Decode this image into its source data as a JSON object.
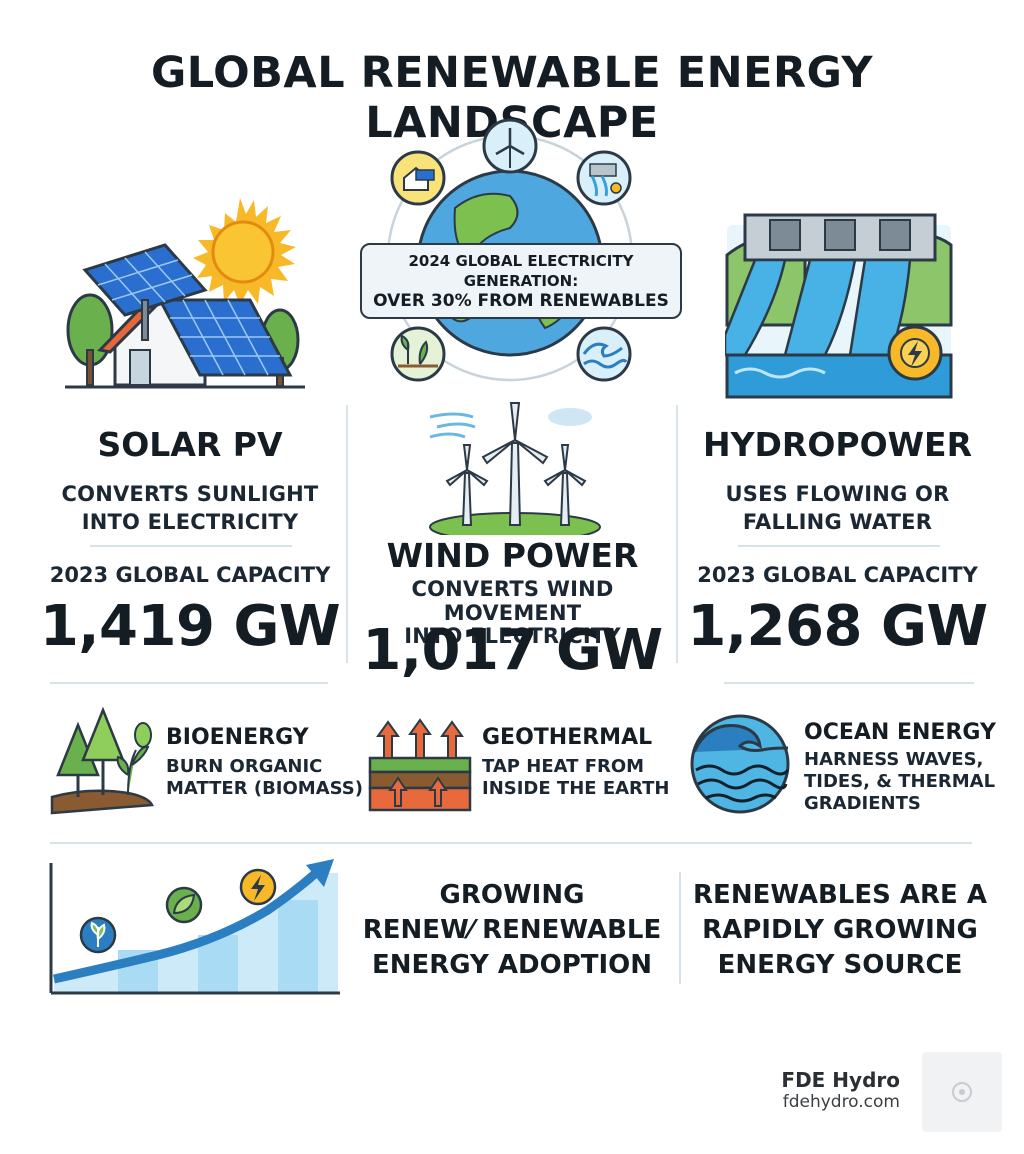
{
  "title": "GLOBAL RENEWABLE ENERGY LANDSCAPE",
  "center_callout": {
    "line1": "2024 GLOBAL ELECTRICITY GENERATION:",
    "line2": "OVER 30% FROM RENEWABLES"
  },
  "solar": {
    "heading": "SOLAR PV",
    "desc_line1": "CONVERTS SUNLIGHT",
    "desc_line2": "INTO ELECTRICITY",
    "capacity_label": "2023 GLOBAL CAPACITY",
    "capacity_value": "1,419 GW"
  },
  "wind": {
    "heading": "WIND POWER",
    "desc_line1": "CONVERTS WIND MOVEMENT",
    "desc_line2": "INTO ELECTRICITY",
    "capacity_value": "1,017 GW"
  },
  "hydro": {
    "heading": "HYDROPOWER",
    "desc_line1": "USES FLOWING OR",
    "desc_line2": "FALLING WATER",
    "capacity_label": "2023 GLOBAL CAPACITY",
    "capacity_value": "1,268 GW"
  },
  "bio": {
    "heading": "BIOENERGY",
    "desc_line1": "BURN ORGANIC",
    "desc_line2": "MATTER (BIOMASS)"
  },
  "geo": {
    "heading": "GEOTHERMAL",
    "desc_line1": "TAP HEAT FROM",
    "desc_line2": "INSIDE THE EARTH"
  },
  "ocean": {
    "heading": "OCEAN ENERGY",
    "desc_line1": "HARNESS WAVES,",
    "desc_line2": "TIDES, & THERMAL",
    "desc_line3": "GRADIENTS"
  },
  "growing": {
    "line1": "GROWING",
    "line2": "RENEW⁄ RENEWABLE",
    "line3": "ENERGY ADOPTION"
  },
  "rapid": {
    "line1": "RENEWABLES ARE A",
    "line2": "RAPIDLY GROWING",
    "line3": "ENERGY SOURCE"
  },
  "brand": {
    "name": "FDE Hydro",
    "url": "fdehydro.com"
  },
  "colors": {
    "accent_blue": "#2b7fc1",
    "sun": "#f7b928",
    "leaf_green": "#6ab04c",
    "water": "#4fb6e3",
    "heat_orange": "#e86a3c",
    "outline": "#2b3a46"
  }
}
